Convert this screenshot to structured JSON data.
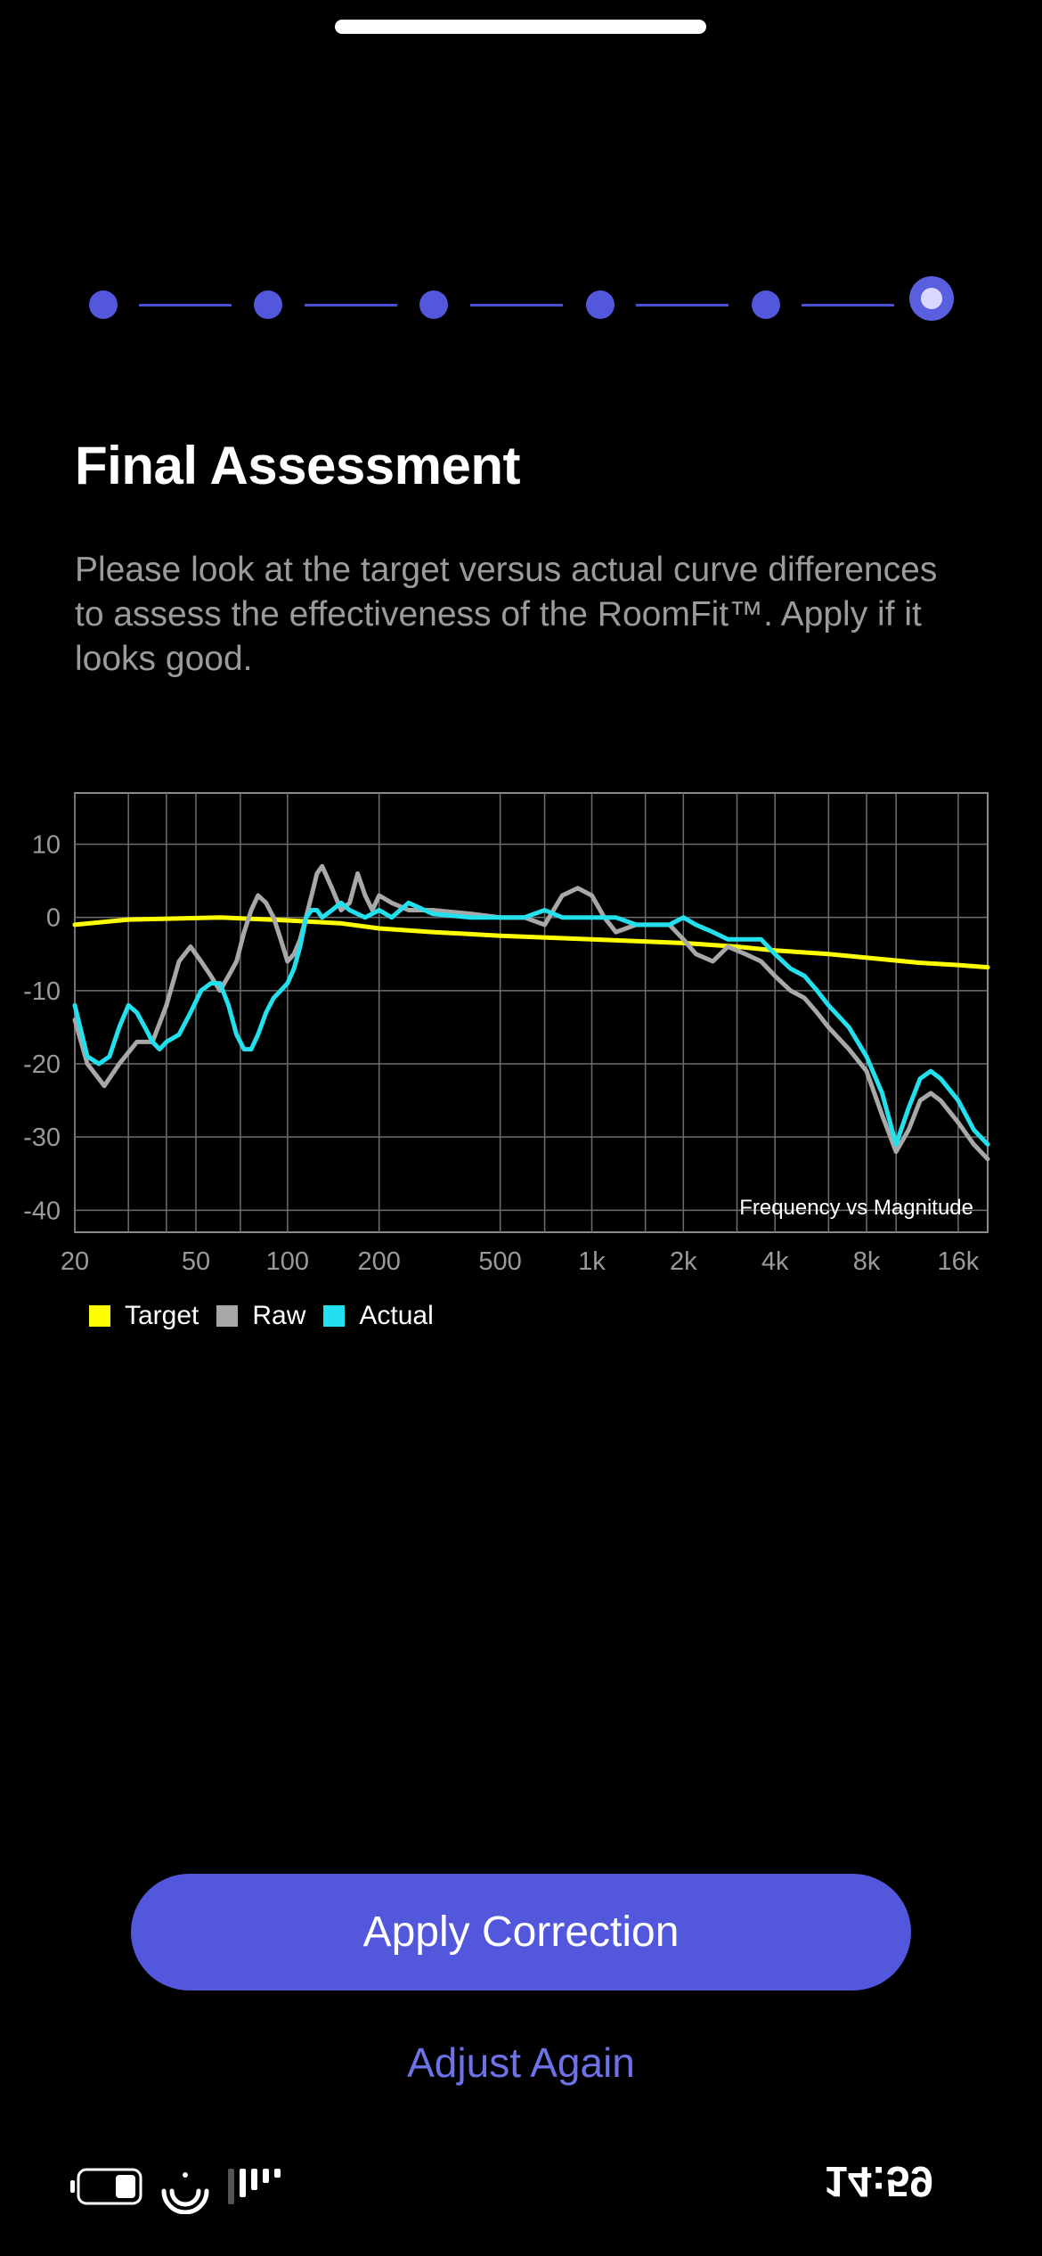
{
  "stepper": {
    "total_steps": 6,
    "current_step": 6
  },
  "header": {
    "title": "Final Assessment",
    "description": "Please look at the target versus actual curve differences to assess the effectiveness of the RoomFit™. Apply if it looks good."
  },
  "chart_data": {
    "type": "line",
    "annotation": "Frequency vs Magnitude",
    "x_scale": "log",
    "x_ticks": [
      "20",
      "50",
      "100",
      "200",
      "500",
      "1k",
      "2k",
      "4k",
      "8k",
      "16k"
    ],
    "y_ticks": [
      "10",
      "0",
      "-10",
      "-20",
      "-30",
      "-40"
    ],
    "ylim": [
      -43,
      17
    ],
    "grid": true,
    "legend_position": "bottom-left",
    "series": [
      {
        "name": "Target",
        "color": "#ffff00",
        "points": [
          [
            20,
            -1
          ],
          [
            30,
            -0.3
          ],
          [
            60,
            0
          ],
          [
            100,
            -0.4
          ],
          [
            150,
            -0.8
          ],
          [
            200,
            -1.5
          ],
          [
            300,
            -2
          ],
          [
            500,
            -2.5
          ],
          [
            1000,
            -3
          ],
          [
            2000,
            -3.5
          ],
          [
            3000,
            -4
          ],
          [
            4000,
            -4.5
          ],
          [
            6000,
            -5
          ],
          [
            8000,
            -5.5
          ],
          [
            12000,
            -6.2
          ],
          [
            16000,
            -6.5
          ],
          [
            20000,
            -6.8
          ]
        ]
      },
      {
        "name": "Raw",
        "color": "#a8a8a8",
        "points": [
          [
            20,
            -14
          ],
          [
            22,
            -20
          ],
          [
            25,
            -23
          ],
          [
            28,
            -20
          ],
          [
            32,
            -17
          ],
          [
            36,
            -17
          ],
          [
            40,
            -12
          ],
          [
            44,
            -6
          ],
          [
            48,
            -4
          ],
          [
            52,
            -6
          ],
          [
            56,
            -8
          ],
          [
            60,
            -10
          ],
          [
            64,
            -8
          ],
          [
            68,
            -6
          ],
          [
            72,
            -2
          ],
          [
            76,
            1
          ],
          [
            80,
            3
          ],
          [
            85,
            2
          ],
          [
            90,
            0
          ],
          [
            95,
            -3
          ],
          [
            100,
            -6
          ],
          [
            105,
            -5
          ],
          [
            110,
            -3
          ],
          [
            115,
            0
          ],
          [
            120,
            3
          ],
          [
            125,
            6
          ],
          [
            130,
            7
          ],
          [
            140,
            4
          ],
          [
            150,
            1
          ],
          [
            160,
            2
          ],
          [
            170,
            6
          ],
          [
            180,
            3
          ],
          [
            190,
            1
          ],
          [
            200,
            3
          ],
          [
            220,
            2
          ],
          [
            250,
            1
          ],
          [
            300,
            1
          ],
          [
            400,
            0.5
          ],
          [
            500,
            0
          ],
          [
            600,
            0
          ],
          [
            700,
            -1
          ],
          [
            800,
            3
          ],
          [
            900,
            4
          ],
          [
            1000,
            3
          ],
          [
            1100,
            0
          ],
          [
            1200,
            -2
          ],
          [
            1400,
            -1
          ],
          [
            1600,
            -1
          ],
          [
            1800,
            -1
          ],
          [
            2000,
            -3
          ],
          [
            2200,
            -5
          ],
          [
            2500,
            -6
          ],
          [
            2800,
            -4
          ],
          [
            3200,
            -5
          ],
          [
            3600,
            -6
          ],
          [
            4000,
            -8
          ],
          [
            4500,
            -10
          ],
          [
            5000,
            -11
          ],
          [
            5500,
            -13
          ],
          [
            6000,
            -15
          ],
          [
            7000,
            -18
          ],
          [
            8000,
            -21
          ],
          [
            9000,
            -27
          ],
          [
            10000,
            -32
          ],
          [
            11000,
            -29
          ],
          [
            12000,
            -25
          ],
          [
            13000,
            -24
          ],
          [
            14000,
            -25
          ],
          [
            16000,
            -28
          ],
          [
            18000,
            -31
          ],
          [
            20000,
            -33
          ]
        ]
      },
      {
        "name": "Actual",
        "color": "#22e0ee",
        "points": [
          [
            20,
            -12
          ],
          [
            22,
            -19
          ],
          [
            24,
            -20
          ],
          [
            26,
            -19
          ],
          [
            28,
            -15
          ],
          [
            30,
            -12
          ],
          [
            32,
            -13
          ],
          [
            34,
            -15
          ],
          [
            36,
            -17
          ],
          [
            38,
            -18
          ],
          [
            40,
            -17
          ],
          [
            44,
            -16
          ],
          [
            48,
            -13
          ],
          [
            52,
            -10
          ],
          [
            56,
            -9
          ],
          [
            60,
            -9
          ],
          [
            64,
            -12
          ],
          [
            68,
            -16
          ],
          [
            72,
            -18
          ],
          [
            76,
            -18
          ],
          [
            80,
            -16
          ],
          [
            85,
            -13
          ],
          [
            90,
            -11
          ],
          [
            95,
            -10
          ],
          [
            100,
            -9
          ],
          [
            105,
            -7
          ],
          [
            110,
            -4
          ],
          [
            115,
            0
          ],
          [
            120,
            1
          ],
          [
            125,
            1
          ],
          [
            130,
            0
          ],
          [
            140,
            1
          ],
          [
            150,
            2
          ],
          [
            160,
            1
          ],
          [
            180,
            0
          ],
          [
            200,
            1
          ],
          [
            220,
            0
          ],
          [
            250,
            2
          ],
          [
            300,
            0.5
          ],
          [
            400,
            0
          ],
          [
            500,
            0
          ],
          [
            600,
            0
          ],
          [
            700,
            1
          ],
          [
            800,
            0
          ],
          [
            900,
            0
          ],
          [
            1000,
            0
          ],
          [
            1200,
            0
          ],
          [
            1400,
            -1
          ],
          [
            1600,
            -1
          ],
          [
            1800,
            -1
          ],
          [
            2000,
            0
          ],
          [
            2200,
            -1
          ],
          [
            2500,
            -2
          ],
          [
            2800,
            -3
          ],
          [
            3200,
            -3
          ],
          [
            3600,
            -3
          ],
          [
            4000,
            -5
          ],
          [
            4500,
            -7
          ],
          [
            5000,
            -8
          ],
          [
            5500,
            -10
          ],
          [
            6000,
            -12
          ],
          [
            7000,
            -15
          ],
          [
            8000,
            -19
          ],
          [
            9000,
            -24
          ],
          [
            10000,
            -31
          ],
          [
            11000,
            -26
          ],
          [
            12000,
            -22
          ],
          [
            13000,
            -21
          ],
          [
            14000,
            -22
          ],
          [
            16000,
            -25
          ],
          [
            18000,
            -29
          ],
          [
            20000,
            -31
          ]
        ]
      }
    ]
  },
  "actions": {
    "primary": "Apply Correction",
    "secondary": "Adjust Again"
  },
  "status_bar": {
    "time": "14:59"
  }
}
